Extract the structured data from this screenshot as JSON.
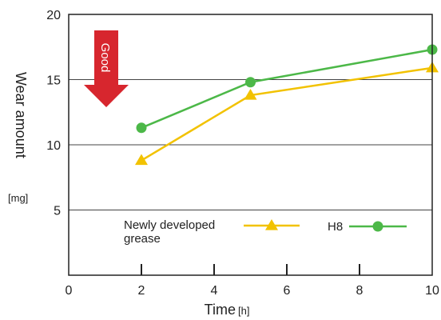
{
  "chart_data": {
    "type": "line",
    "xlabel": "Time",
    "xunit": "[h]",
    "ylabel": "Wear amount",
    "yunit": "[mg]",
    "xlim": [
      0,
      10
    ],
    "ylim": [
      0,
      20
    ],
    "x_ticks": [
      0,
      2,
      4,
      6,
      8,
      10
    ],
    "y_ticks": [
      5,
      10,
      15,
      20
    ],
    "grid": "horizontal",
    "legend_position": "bottom",
    "annotation": "Good",
    "series": [
      {
        "name": "Newly developed grease",
        "name_lines": [
          "Newly developed",
          "grease"
        ],
        "color": "#f2c200",
        "marker": "triangle",
        "x": [
          2,
          5,
          10
        ],
        "y": [
          8.8,
          13.8,
          15.9
        ]
      },
      {
        "name": "H8",
        "name_lines": [
          "H8"
        ],
        "color": "#4cb848",
        "marker": "circle",
        "x": [
          2,
          5,
          10
        ],
        "y": [
          11.3,
          14.8,
          17.3
        ]
      }
    ],
    "colors": {
      "annotation_arrow": "#d7262e",
      "axis": "#222222"
    }
  }
}
